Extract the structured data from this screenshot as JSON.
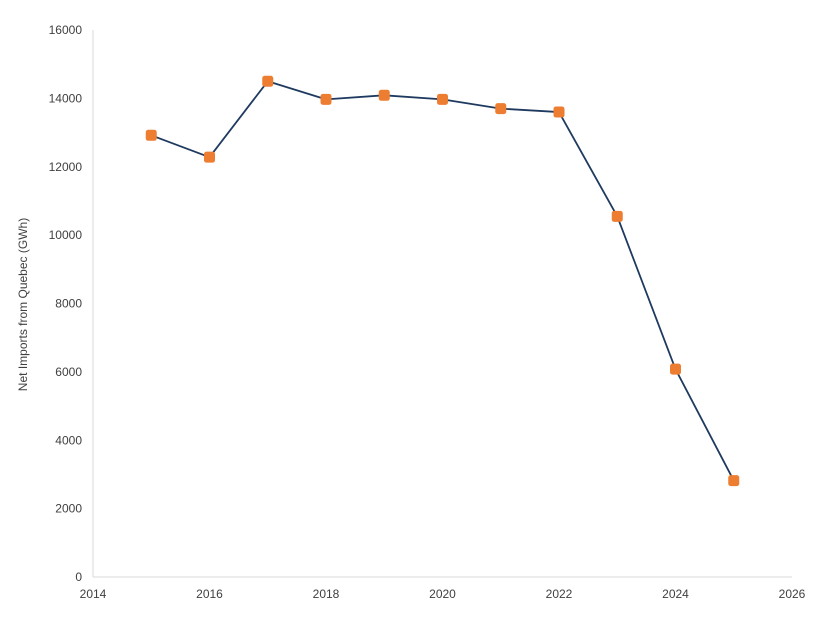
{
  "chart_data": {
    "type": "line",
    "title": "",
    "xlabel": "",
    "ylabel": "Net Imports from Quebec (GWh)",
    "xlim": [
      2014,
      2026
    ],
    "ylim": [
      0,
      16000
    ],
    "xticks": [
      2014,
      2016,
      2018,
      2020,
      2022,
      2024,
      2026
    ],
    "yticks": [
      0,
      2000,
      4000,
      6000,
      8000,
      10000,
      12000,
      14000,
      16000
    ],
    "grid": false,
    "legend": "none",
    "series": [
      {
        "color": "#1f3a5f",
        "marker_color": "#ed7d31",
        "marker": "square",
        "x": [
          2015,
          2016,
          2017,
          2018,
          2019,
          2020,
          2021,
          2022,
          2023,
          2024,
          2025
        ],
        "y": [
          12920,
          12280,
          14500,
          13970,
          14090,
          13970,
          13700,
          13600,
          10550,
          6080,
          2820
        ]
      }
    ]
  }
}
